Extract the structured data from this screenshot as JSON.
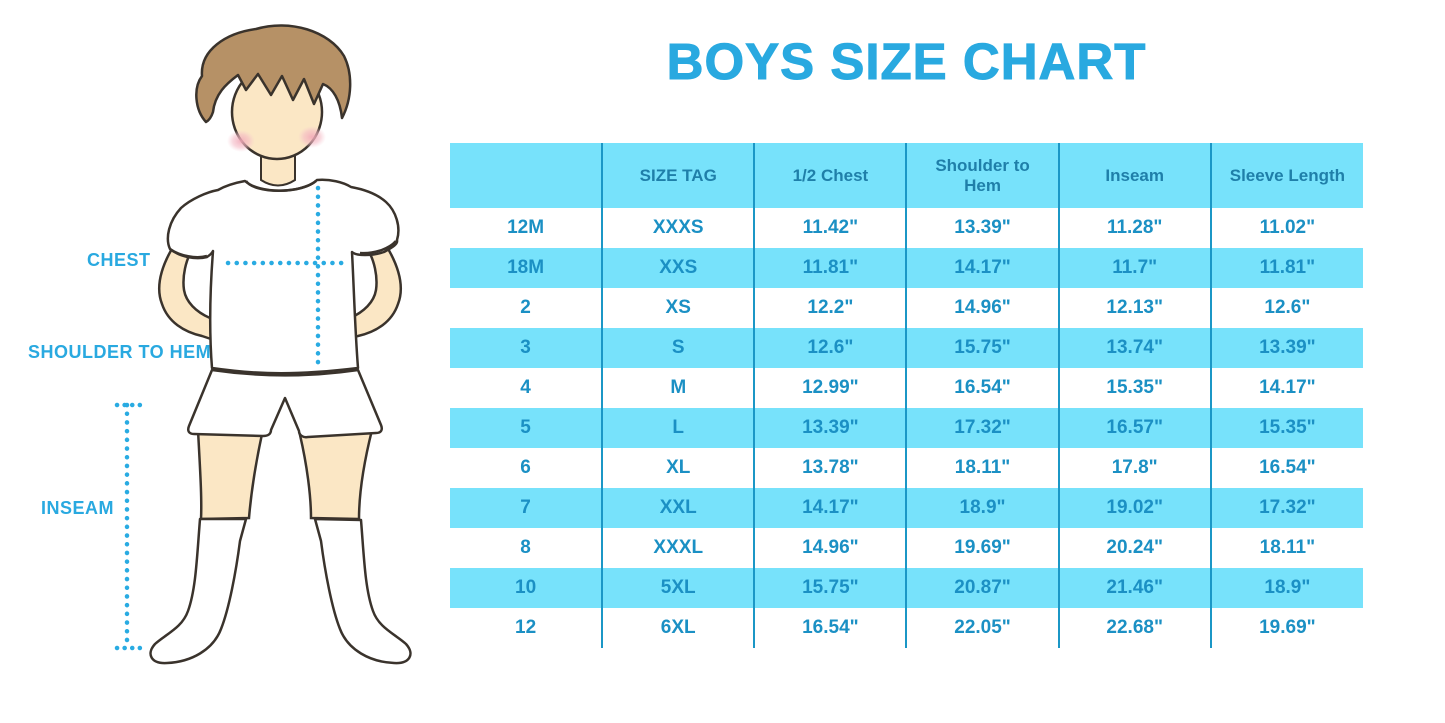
{
  "title": "BOYS SIZE CHART",
  "figure_labels": {
    "chest": "CHEST",
    "shoulder_to_hem": "SHOULDER TO HEM",
    "inseam": "INSEAM"
  },
  "chart_data": {
    "type": "table",
    "title": "BOYS SIZE CHART",
    "columns": [
      "",
      "SIZE TAG",
      "1/2 Chest",
      "Shoulder to Hem",
      "Inseam",
      "Sleeve Length"
    ],
    "rows": [
      [
        "12M",
        "XXXS",
        "11.42\"",
        "13.39\"",
        "11.28\"",
        "11.02\""
      ],
      [
        "18M",
        "XXS",
        "11.81\"",
        "14.17\"",
        "11.7\"",
        "11.81\""
      ],
      [
        "2",
        "XS",
        "12.2\"",
        "14.96\"",
        "12.13\"",
        "12.6\""
      ],
      [
        "3",
        "S",
        "12.6\"",
        "15.75\"",
        "13.74\"",
        "13.39\""
      ],
      [
        "4",
        "M",
        "12.99\"",
        "16.54\"",
        "15.35\"",
        "14.17\""
      ],
      [
        "5",
        "L",
        "13.39\"",
        "17.32\"",
        "16.57\"",
        "15.35\""
      ],
      [
        "6",
        "XL",
        "13.78\"",
        "18.11\"",
        "17.8\"",
        "16.54\""
      ],
      [
        "7",
        "XXL",
        "14.17\"",
        "18.9\"",
        "19.02\"",
        "17.32\""
      ],
      [
        "8",
        "XXXL",
        "14.96\"",
        "19.69\"",
        "20.24\"",
        "18.11\""
      ],
      [
        "10",
        "5XL",
        "15.75\"",
        "20.87\"",
        "21.46\"",
        "18.9\""
      ],
      [
        "12",
        "6XL",
        "16.54\"",
        "22.05\"",
        "22.68\"",
        "19.69\""
      ]
    ],
    "layout": {
      "striped": true,
      "stripe_rows": "even rows blue starting with 18M",
      "legend": "none",
      "grid": "vertical dividers only"
    }
  },
  "colors": {
    "accent_blue": "#29a9e0",
    "table_stripe": "#77e2fb",
    "table_divider": "#1b97c6",
    "cell_text": "#1b90c4",
    "header_text": "#1f7fa9",
    "dotted_line": "#29abe2",
    "skin": "#fbe7c5",
    "hair": "#b69166",
    "outline": "#3a332c",
    "blush": "#f2a9b8"
  }
}
